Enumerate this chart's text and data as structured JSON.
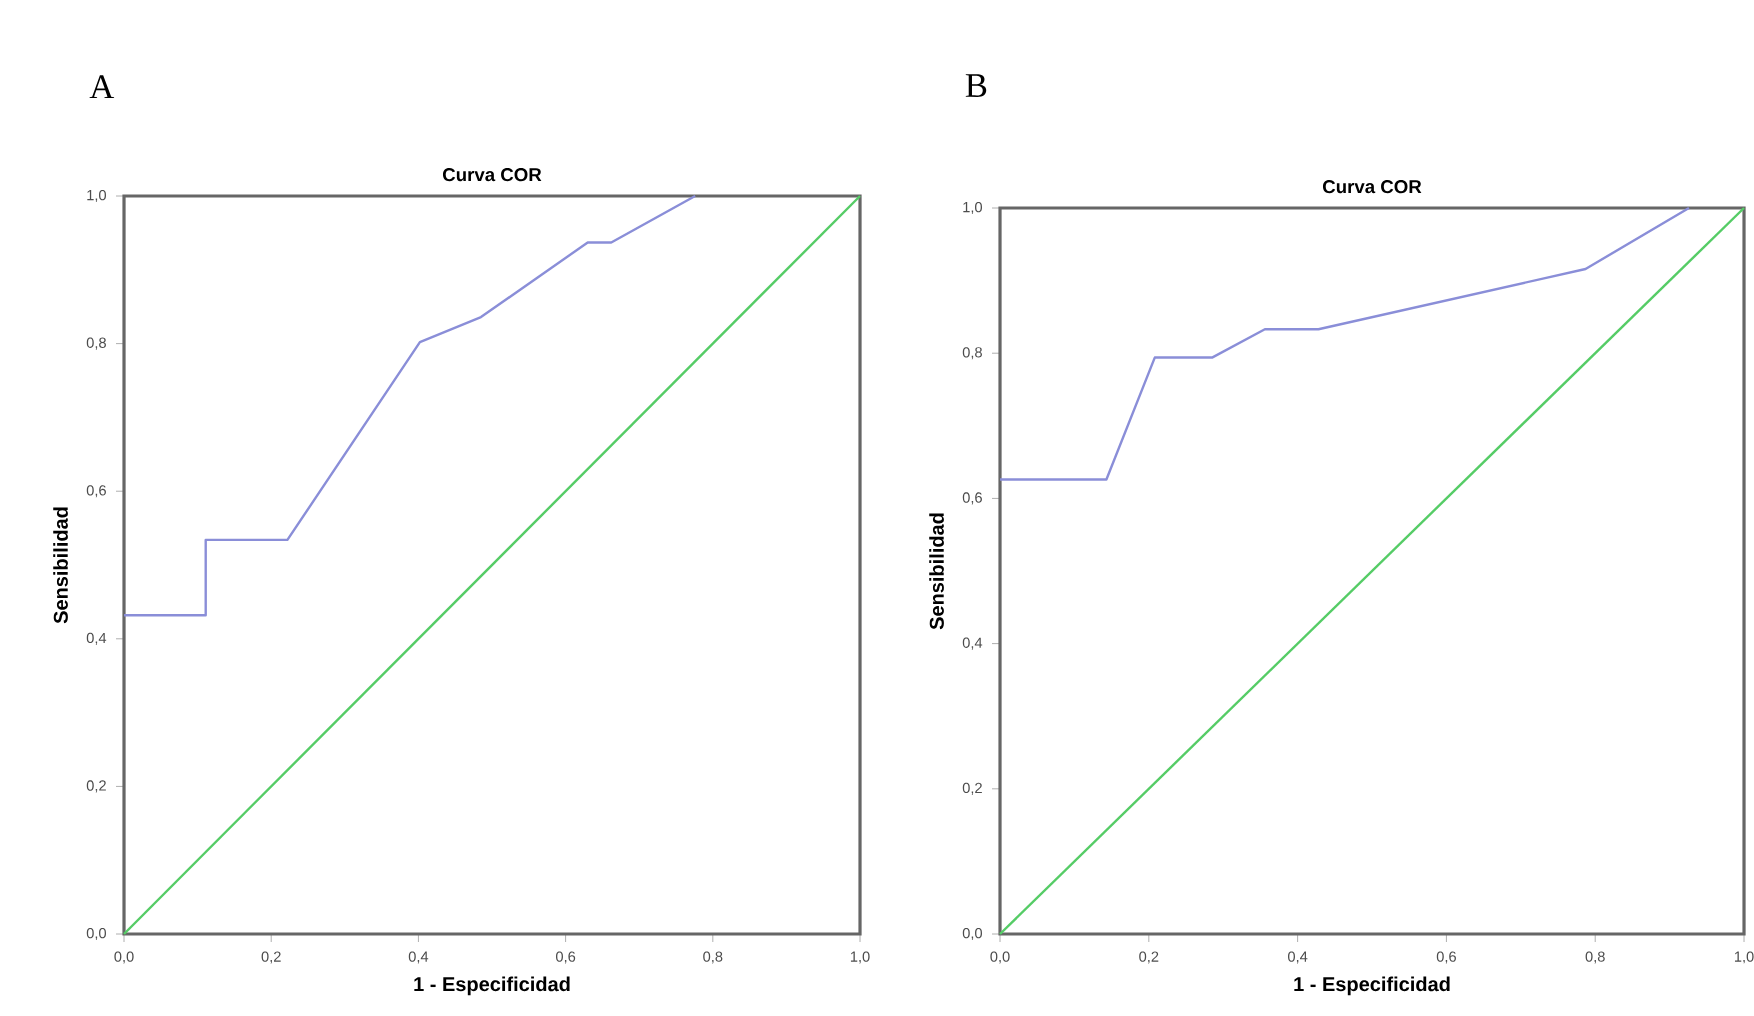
{
  "chart_data": [
    {
      "type": "line",
      "title": "Curva COR",
      "xlabel": "1 - Especificidad",
      "ylabel": "Sensibilidad",
      "annotations": [
        "A"
      ],
      "xlim": [
        0,
        1
      ],
      "ylim": [
        0,
        1
      ],
      "xticks": [
        {
          "value": 0,
          "label": "0,0"
        },
        {
          "value": 0.2,
          "label": "0,2"
        },
        {
          "value": 0.4,
          "label": "0,4"
        },
        {
          "value": 0.6,
          "label": "0,6"
        },
        {
          "value": 0.8,
          "label": "0,8"
        },
        {
          "value": 1,
          "label": "1,0"
        }
      ],
      "yticks": [
        {
          "value": 0,
          "label": "0,0"
        },
        {
          "value": 0.2,
          "label": "0,2"
        },
        {
          "value": 0.4,
          "label": "0,4"
        },
        {
          "value": 0.6,
          "label": "0,6"
        },
        {
          "value": 0.8,
          "label": "0,8"
        },
        {
          "value": 1,
          "label": "1,0"
        }
      ],
      "grid": false,
      "marker": "none",
      "series": [
        {
          "color": "#8a8ed8",
          "x": [
            0,
            0.111,
            0.111,
            0.222,
            0.402,
            0.485,
            0.63,
            0.662,
            0.776
          ],
          "values": [
            0.432,
            0.432,
            0.534,
            0.534,
            0.802,
            0.836,
            0.937,
            0.937,
            1.0
          ]
        },
        {
          "color": "#55cc66",
          "x": [
            0,
            1
          ],
          "values": [
            0,
            1
          ]
        }
      ]
    },
    {
      "type": "line",
      "title": "Curva COR",
      "xlabel": "1 - Especificidad",
      "ylabel": "Sensibilidad",
      "annotations": [
        "B"
      ],
      "xlim": [
        0,
        1
      ],
      "ylim": [
        0,
        1
      ],
      "xticks": [
        {
          "value": 0,
          "label": "0,0"
        },
        {
          "value": 0.2,
          "label": "0,2"
        },
        {
          "value": 0.4,
          "label": "0,4"
        },
        {
          "value": 0.6,
          "label": "0,6"
        },
        {
          "value": 0.8,
          "label": "0,8"
        },
        {
          "value": 1,
          "label": "1,0"
        }
      ],
      "yticks": [
        {
          "value": 0,
          "label": "0,0"
        },
        {
          "value": 0.2,
          "label": "0,2"
        },
        {
          "value": 0.4,
          "label": "0,4"
        },
        {
          "value": 0.6,
          "label": "0,6"
        },
        {
          "value": 0.8,
          "label": "0,8"
        },
        {
          "value": 1,
          "label": "1,0"
        }
      ],
      "grid": false,
      "marker": "none",
      "series": [
        {
          "color": "#8a8ed8",
          "x": [
            0,
            0.143,
            0.208,
            0.285,
            0.356,
            0.428,
            0.787,
            0.926
          ],
          "values": [
            0.626,
            0.626,
            0.794,
            0.794,
            0.833,
            0.833,
            0.916,
            1.0
          ]
        },
        {
          "color": "#55cc66",
          "x": [
            0,
            1
          ],
          "values": [
            0,
            1
          ]
        }
      ]
    }
  ]
}
